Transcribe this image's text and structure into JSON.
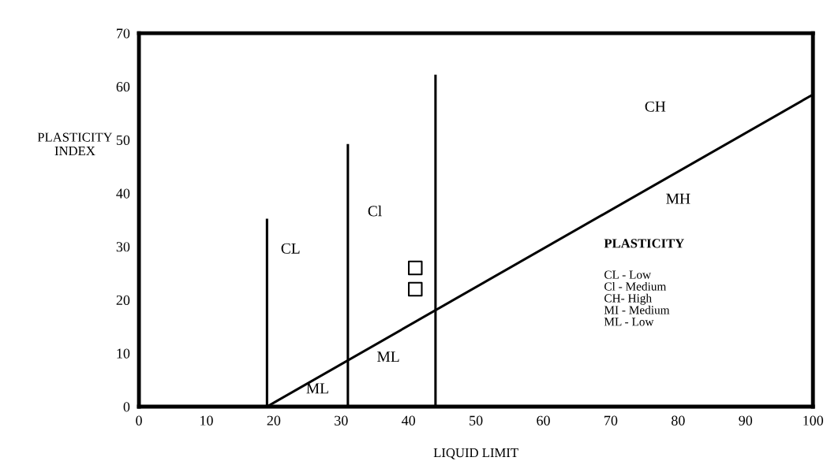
{
  "chart_data": {
    "type": "line",
    "xlabel": "LIQUID LIMIT",
    "ylabel": "PLASTICITY\nINDEX",
    "xlim": [
      0,
      100
    ],
    "ylim": [
      0,
      70
    ],
    "xticks": [
      0,
      10,
      20,
      30,
      40,
      50,
      60,
      70,
      80,
      90,
      100
    ],
    "yticks": [
      0,
      10,
      20,
      30,
      40,
      50,
      60,
      70
    ],
    "grid": false,
    "legend": false,
    "series": [
      {
        "color": "#000000",
        "x": [
          19,
          100
        ],
        "values": [
          0,
          58.5
        ]
      },
      {
        "color": "#000000",
        "x": [
          19,
          19
        ],
        "values": [
          0,
          35
        ]
      },
      {
        "color": "#000000",
        "x": [
          31,
          31
        ],
        "values": [
          0,
          49
        ]
      },
      {
        "color": "#000000",
        "x": [
          44,
          44
        ],
        "values": [
          0,
          62
        ]
      },
      {
        "type": "scatter",
        "color": "#000000",
        "marker": "square",
        "x": [
          41,
          41
        ],
        "values": [
          26,
          22
        ]
      }
    ],
    "annotations": [
      "CL",
      "Cl",
      "CH",
      "MH",
      "ML",
      "ML",
      "PLASTICITY",
      "CL - Low\nCl - Medium\nCH- High\nMI - Medium\nML - Low"
    ]
  }
}
